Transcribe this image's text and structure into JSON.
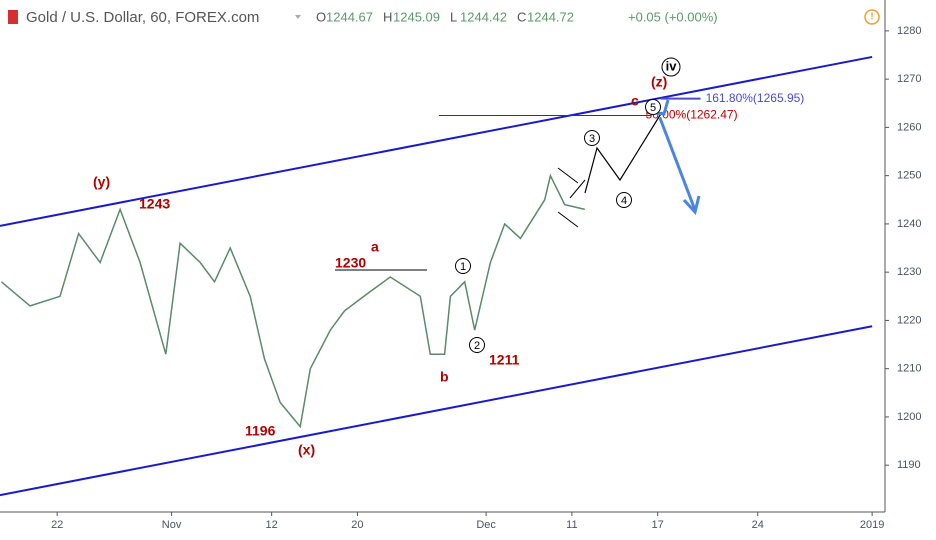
{
  "header": {
    "symbol": "Gold / U.S. Dollar, 60, FOREX.com",
    "ohlc": [
      {
        "label": "O",
        "value": 1244.67
      },
      {
        "label": "H",
        "value": 1245.09
      },
      {
        "label": "L",
        "value": 1244.42
      },
      {
        "label": "C",
        "value": 1244.72
      }
    ],
    "change": "+0.05 (+0.00%)"
  },
  "chart_data": {
    "type": "line",
    "xlim": [
      -4,
      57.9
    ],
    "ylim": [
      1180.3,
      1286.4
    ],
    "xticks": [
      {
        "value": 0,
        "label": "22"
      },
      {
        "value": 8,
        "label": "Nov"
      },
      {
        "value": 15,
        "label": "12"
      },
      {
        "value": 21,
        "label": "20"
      },
      {
        "value": 30,
        "label": "Dec"
      },
      {
        "value": 36,
        "label": "11"
      },
      {
        "value": 42,
        "label": "17"
      },
      {
        "value": 49,
        "label": "24"
      },
      {
        "value": 57,
        "label": "2019"
      }
    ],
    "yticks": [
      1190,
      1200,
      1210,
      1220,
      1230,
      1240,
      1250,
      1260,
      1270,
      1280
    ],
    "series": [
      {
        "color": "#5a8a6a",
        "x": [
          -3.9,
          -1.9,
          0.2,
          1.5,
          3.0,
          4.4,
          5.8,
          7.6,
          8.6,
          10.0,
          11.0,
          12.1,
          13.5,
          14.5,
          15.6,
          17.0,
          17.7,
          19.1,
          20.1,
          21.9,
          23.3,
          25.4,
          26.1,
          27.1,
          27.5,
          28.5,
          29.2,
          30.3,
          31.3,
          32.4,
          34.1,
          34.5,
          35.5,
          36.9
        ],
        "values": [
          1228,
          1223,
          1225,
          1238,
          1232,
          1243,
          1232,
          1213,
          1236,
          1232,
          1228,
          1235,
          1225,
          1212,
          1203,
          1198,
          1210,
          1218,
          1222,
          1226,
          1229,
          1225,
          1213,
          1213,
          1225,
          1228,
          1218,
          1232,
          1240,
          1237,
          1245,
          1250,
          1244,
          1243
        ]
      }
    ],
    "trendlines": [
      {
        "color": "#1a1acc",
        "x": [
          -4,
          57
        ],
        "values": [
          1239.6,
          1274.6
        ]
      },
      {
        "color": "#1a1acc",
        "x": [
          -4,
          57
        ],
        "values": [
          1183.8,
          1218.8
        ]
      }
    ],
    "levels": [
      {
        "color": "#c00000",
        "x": [
          26.7,
          41.5
        ],
        "value": 1262.47,
        "label": "50.00%(1262.47)"
      },
      {
        "color": "#4a4ad0",
        "x": [
          42.2,
          45
        ],
        "value": 1265.95,
        "label": "161.80%(1265.95)"
      }
    ],
    "annotations": [
      "(y)",
      "1243",
      "a",
      "1230",
      "b",
      "1211",
      "(x)",
      "1196",
      "(z)",
      "iv",
      "c",
      "1",
      "2",
      "3",
      "4",
      "5"
    ]
  }
}
